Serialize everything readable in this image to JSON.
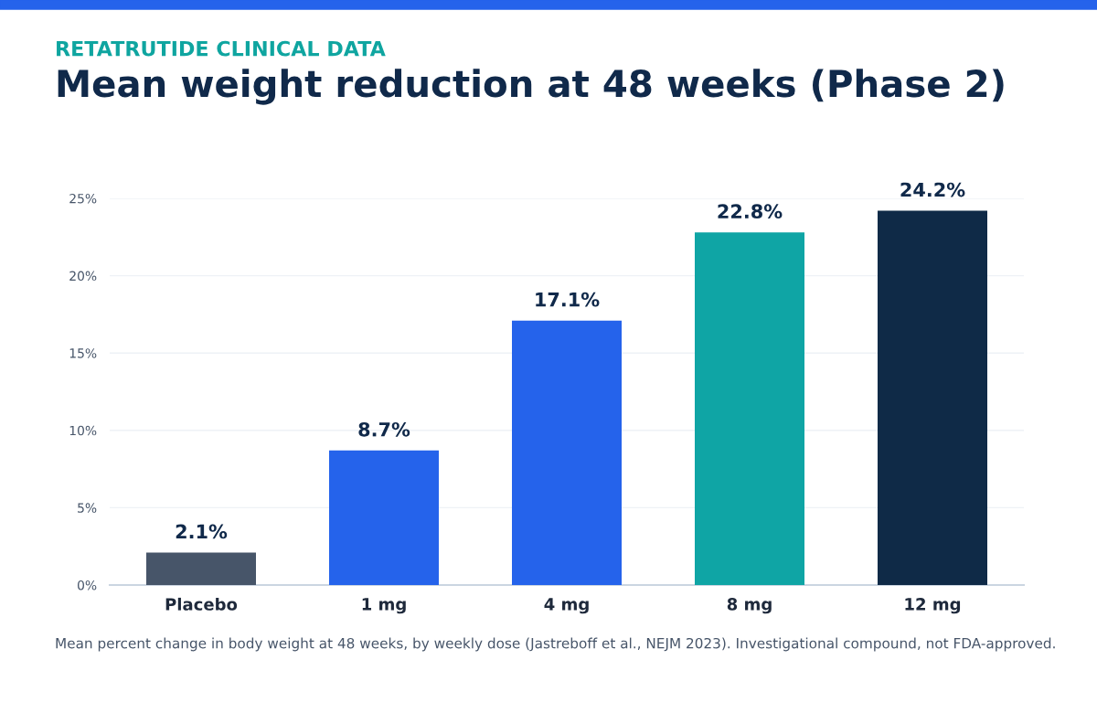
{
  "chart_data": {
    "type": "bar",
    "subtitle": "RETATRUTIDE CLINICAL DATA",
    "title": "Mean weight reduction at 48 weeks (Phase 2)",
    "categories": [
      "Placebo",
      "1 mg",
      "4 mg",
      "8 mg",
      "12 mg"
    ],
    "values": [
      2.1,
      8.7,
      17.1,
      22.8,
      24.2
    ],
    "colors": [
      "#475569",
      "#2563eb",
      "#2563eb",
      "#0fa5a5",
      "#0f2a47"
    ],
    "value_labels": [
      "2.1%",
      "8.7%",
      "17.1%",
      "22.8%",
      "24.2%"
    ],
    "ylim": [
      0,
      25
    ],
    "yticks": [
      {
        "value": 0,
        "label": "0%"
      },
      {
        "value": 5,
        "label": "5%"
      },
      {
        "value": 10,
        "label": "10%"
      },
      {
        "value": 15,
        "label": "15%"
      },
      {
        "value": 20,
        "label": "20%"
      },
      {
        "value": 25,
        "label": "25%"
      }
    ],
    "grid": "y",
    "annotations": [
      "Mean percent change in body weight at 48 weeks, by weekly dose (Jastreboff et al., NEJM 2023). Investigational compound, not FDA-approved."
    ]
  }
}
